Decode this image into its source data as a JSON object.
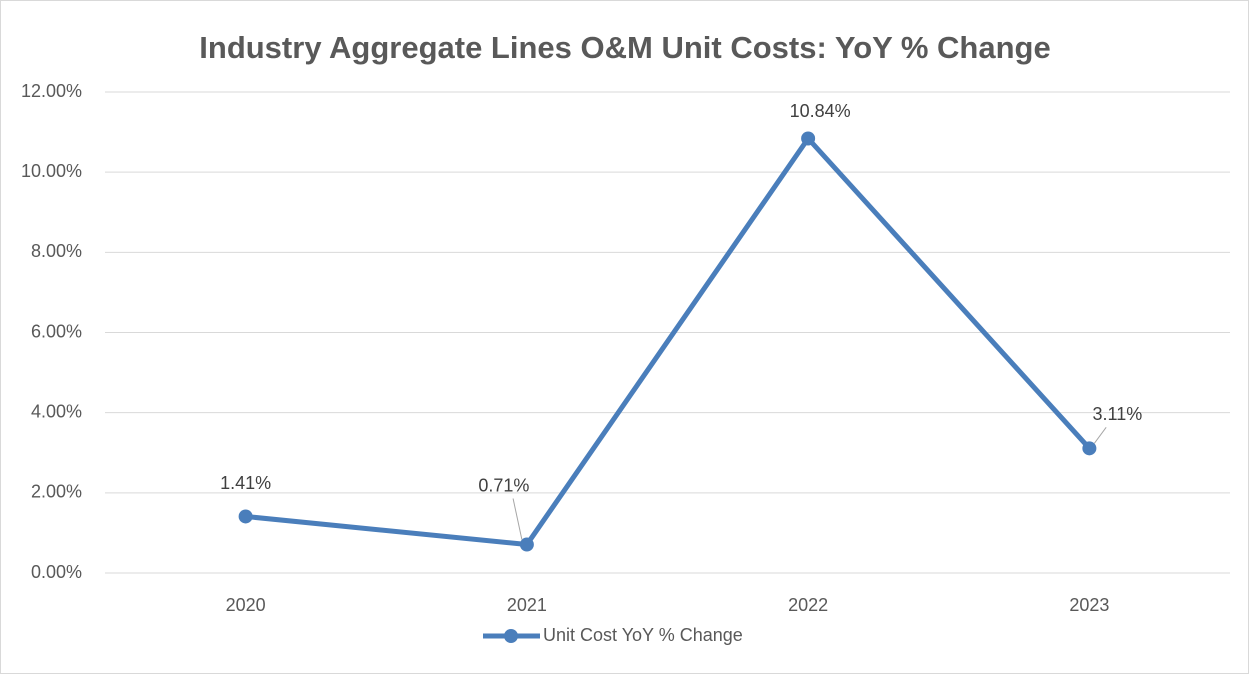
{
  "chart_data": {
    "type": "line",
    "title": "Industry Aggregate Lines O&M Unit Costs: YoY % Change",
    "categories": [
      "2020",
      "2021",
      "2022",
      "2023"
    ],
    "series": [
      {
        "name": "Unit Cost YoY % Change",
        "color": "#4a7ebb",
        "values": [
          1.41,
          0.71,
          10.84,
          3.11
        ],
        "value_labels": [
          "1.41%",
          "0.71%",
          "10.84%",
          "3.11%"
        ]
      }
    ],
    "ylim": [
      0,
      12
    ],
    "yticks": [
      {
        "value": 0,
        "label": "0.00%"
      },
      {
        "value": 2,
        "label": "2.00%"
      },
      {
        "value": 4,
        "label": "4.00%"
      },
      {
        "value": 6,
        "label": "6.00%"
      },
      {
        "value": 8,
        "label": "8.00%"
      },
      {
        "value": 10,
        "label": "10.00%"
      },
      {
        "value": 12,
        "label": "12.00%"
      }
    ],
    "grid": true,
    "legend": "bottom"
  }
}
